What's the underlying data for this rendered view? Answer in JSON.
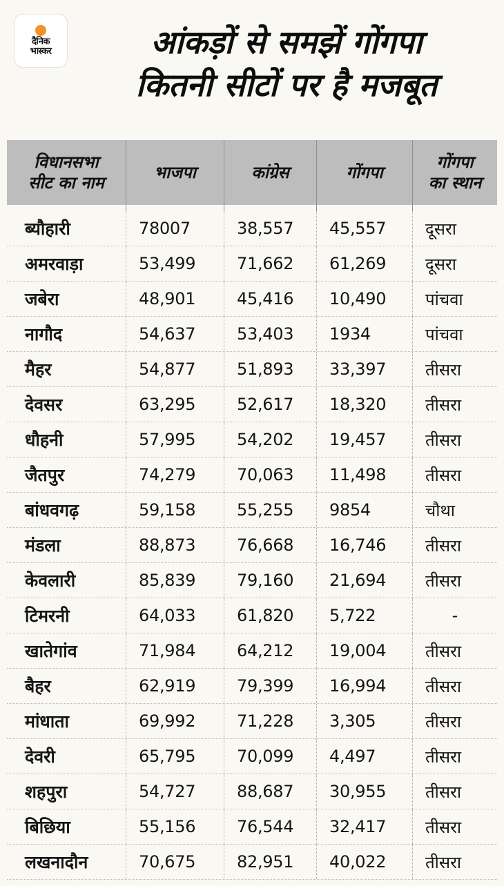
{
  "logo": {
    "line1": "दैनिक",
    "line2": "भास्कर",
    "accent_color": "#f3922a"
  },
  "title": {
    "line1": "आंकड़ों से समझें गोंगपा",
    "line2": "कितनी सीटों पर है मजबूत"
  },
  "table": {
    "headers": [
      "विधानसभा\nसीट का नाम",
      "भाजपा",
      "कांग्रेस",
      "गोंगपा",
      "गोंगपा\nका स्थान"
    ],
    "header_bg": "#bdbdbd",
    "rows": [
      [
        "ब्यौहारी",
        "78007",
        "38,557",
        "45,557",
        "दूसरा"
      ],
      [
        "अमरवाड़ा",
        "53,499",
        "71,662",
        "61,269",
        "दूसरा"
      ],
      [
        "जबेरा",
        "48,901",
        "45,416",
        "10,490",
        "पांचवा"
      ],
      [
        "नागौद",
        "54,637",
        "53,403",
        "1934",
        "पांचवा"
      ],
      [
        "मैहर",
        "54,877",
        "51,893",
        "33,397",
        "तीसरा"
      ],
      [
        "देवसर",
        "63,295",
        "52,617",
        "18,320",
        "तीसरा"
      ],
      [
        "धौहनी",
        "57,995",
        "54,202",
        "19,457",
        "तीसरा"
      ],
      [
        "जैतपुर",
        "74,279",
        "70,063",
        "11,498",
        "तीसरा"
      ],
      [
        "बांधवगढ़",
        "59,158",
        "55,255",
        "9854",
        "चौथा"
      ],
      [
        "मंडला",
        "88,873",
        "76,668",
        "16,746",
        "तीसरा"
      ],
      [
        "केवलारी",
        "85,839",
        "79,160",
        "21,694",
        "तीसरा"
      ],
      [
        "टिमरनी",
        "64,033",
        "61,820",
        "5,722",
        "-"
      ],
      [
        "खातेगांव",
        "71,984",
        "64,212",
        "19,004",
        "तीसरा"
      ],
      [
        "बैहर",
        "62,919",
        "79,399",
        "16,994",
        "तीसरा"
      ],
      [
        "मांधाता",
        "69,992",
        "71,228",
        "3,305",
        "तीसरा"
      ],
      [
        "देवरी",
        "65,795",
        "70,099",
        "4,497",
        "तीसरा"
      ],
      [
        "शहपुरा",
        "54,727",
        "88,687",
        "30,955",
        "तीसरा"
      ],
      [
        "बिछिया",
        "55,156",
        "76,544",
        "32,417",
        "तीसरा"
      ],
      [
        "लखनादौन",
        "70,675",
        "82,951",
        "40,022",
        "तीसरा"
      ]
    ]
  }
}
